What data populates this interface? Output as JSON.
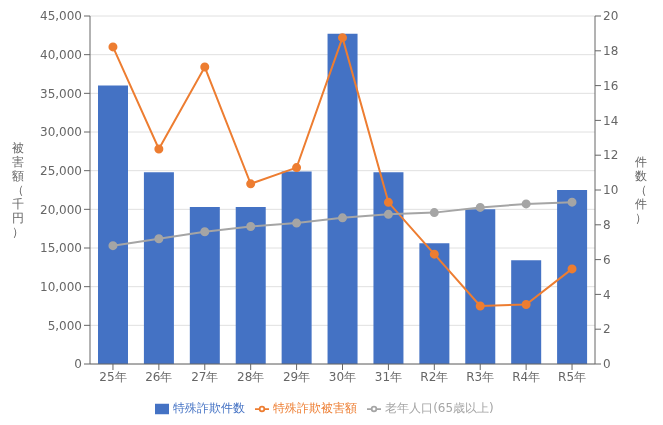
{
  "chart_data": {
    "type": "bar",
    "categories": [
      "25年",
      "26年",
      "27年",
      "28年",
      "29年",
      "30年",
      "31年",
      "R2年",
      "R3年",
      "R4年",
      "R5年"
    ],
    "series": [
      {
        "name": "特殊詐欺件数",
        "type": "bar",
        "color": "#4472C4",
        "values": [
          36000,
          24800,
          20300,
          20300,
          24900,
          42700,
          24800,
          15600,
          20000,
          13400,
          22500
        ]
      },
      {
        "name": "特殊詐欺被害額",
        "type": "line",
        "color": "#ED7D31",
        "marker": "circle",
        "values": [
          41000,
          27800,
          38400,
          23300,
          25400,
          42200,
          20900,
          14200,
          7500,
          7700,
          12300
        ]
      },
      {
        "name": "老年人口(65歳以上)",
        "type": "line",
        "color": "#A5A5A5",
        "marker": "circle",
        "axis": "y2",
        "values": [
          6.8,
          7.2,
          7.6,
          7.9,
          8.1,
          8.4,
          8.6,
          8.7,
          9.0,
          9.2,
          9.3
        ]
      }
    ],
    "ylabel": "被害額（千円）",
    "y2label": "件数（件）",
    "ylim": [
      0,
      45000
    ],
    "yticks": [
      0,
      {
        "value": 5000,
        "label": "5,000"
      },
      {
        "value": 10000,
        "label": "10,000"
      },
      {
        "value": 15000,
        "label": "15,000"
      },
      {
        "value": 20000,
        "label": "20,000"
      },
      {
        "value": 25000,
        "label": "25,000"
      },
      {
        "value": 30000,
        "label": "30,000"
      },
      {
        "value": 35000,
        "label": "35,000"
      },
      {
        "value": 40000,
        "label": "40,000"
      },
      {
        "value": 45000,
        "label": "45,000"
      }
    ],
    "y2lim": [
      0,
      20
    ],
    "y2ticks": [
      0,
      2,
      4,
      6,
      8,
      10,
      12,
      14,
      16,
      18,
      20
    ],
    "grid": true,
    "legend": "bottom"
  }
}
